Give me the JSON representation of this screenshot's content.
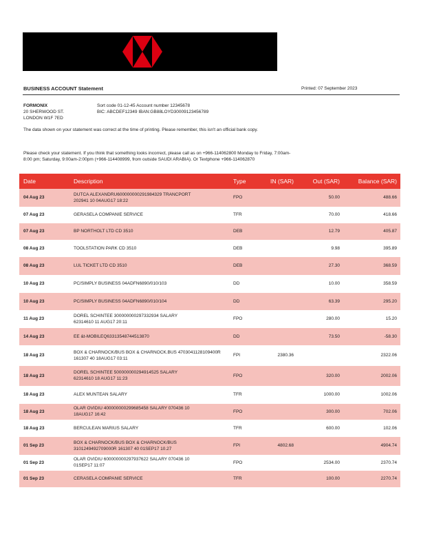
{
  "header": {
    "title": "BUSINESS ACCOUNT Statement",
    "printed": "Printed: 07 September 2023"
  },
  "customer": {
    "name": "FORMONIX",
    "address": [
      "20 SHERWOOD ST.",
      "LONDON W1F 7ED"
    ]
  },
  "account": {
    "line1": "Sort code 01-12-45  Account number 12345678",
    "line2": "BIC: ABCDEF12349  IBAN:GB88LOYD30009123456789"
  },
  "notes": {
    "accuracy": "The data shown on your statement was correct at the time of printing. Please remember, this isn't an official bank copy.",
    "check": [
      "Please check your statement. If you think that something looks incorrect, please call as on +966-114062800 Monday to Friday, 7:00am-",
      "8:00 pm; Saturday, 9:00am-2:00pm (+966-114408999, from outside SAUDI ARABIA). Or Textphone +966-114062870"
    ]
  },
  "table": {
    "columns": [
      "Date",
      "Description",
      "Type",
      "IN (SAR)",
      "Out (SAR)",
      "Balance (SAR)"
    ],
    "rows": [
      [
        "04 Aug 23",
        [
          "DUTCA ALEXANDRU600000000291984329 TRANCPORT",
          "202941 10 04AUG17 18:22"
        ],
        "FPO",
        "",
        "50.00",
        "488.66"
      ],
      [
        "07 Aug 23",
        [
          "GERASELA COMPANIE SERVICE"
        ],
        "TFR",
        "",
        "70.00",
        "418.66"
      ],
      [
        "07 Aug 23",
        [
          "BP NORTHOLT LTD CD 3510"
        ],
        "DEB",
        "",
        "12.79",
        "405.87"
      ],
      [
        "08 Aug 23",
        [
          "TOOLSTATION PARK CD 3510"
        ],
        "DEB",
        "",
        "9.98",
        "395.89"
      ],
      [
        "08 Aug 23",
        [
          "LUL TICKET LTD CD 3510"
        ],
        "DEB",
        "",
        "27.30",
        "368.59"
      ],
      [
        "10 Aug 23",
        [
          "PC/SIMPLY BUSINESS 04ADFN6890/010/103"
        ],
        "DD",
        "",
        "10.00",
        "358.59"
      ],
      [
        "10 Aug 23",
        [
          "PC/SIMPLY BUSINESS 04ADFN6890/010/104"
        ],
        "DD",
        "",
        "63.39",
        "295.20"
      ],
      [
        "11 Aug 23",
        [
          "DOREL SCHINTEE 300000000297332934 SALARY",
          "62314610 11 AUG17 20:11"
        ],
        "FPO",
        "",
        "280.00",
        "15.20"
      ],
      [
        "14 Aug 23",
        [
          "EE &t-MOBILEQ63313548744513870"
        ],
        "DD",
        "",
        "73.50",
        "-58.30"
      ],
      [
        "18 Aug 23",
        [
          "BOX & CHARNOCK/BUS BOX & CHARNOCK.BUS 4703041128109400R",
          "161307 40 18AUG17 03:11"
        ],
        "FPI",
        "2380.36",
        "",
        "2322.06"
      ],
      [
        "18 Aug 23",
        [
          "DOREL SCHINTEE 500000000294914525 SALARY",
          "62314610 18 AUG17 11:23"
        ],
        "FPO",
        "",
        "320.00",
        "2002.06"
      ],
      [
        "18 Aug 23",
        [
          "ALEX MUNTEAN SALARY"
        ],
        "TFR",
        "",
        "1000.00",
        "1002.06"
      ],
      [
        "18 Aug 23",
        [
          "OLAR OVIDIU 400000000299685458 SALARY 070436 10",
          "18AUG17 16:42"
        ],
        "FPO",
        "",
        "300.00",
        "702.06"
      ],
      [
        "18 Aug 23",
        [
          "BERCULEAN MARIUS SALARY"
        ],
        "TFR",
        "",
        "600.00",
        "102.06"
      ],
      [
        "01 Sep 23",
        [
          "BOX & CHARNOCK/BUS BOX & CHARNOCK/BUS",
          "3101249492709000R 161307 40 01SEP17 10.27"
        ],
        "FPI",
        "4802.68",
        "",
        "4904.74"
      ],
      [
        "01 Sep 23",
        [
          "OLAR OVIDIU 600000000297937622 SALARY 070436 10",
          "01SEP17 11:07"
        ],
        "FPO",
        "",
        "2534.00",
        "2370.74"
      ],
      [
        "01 Sep 23",
        [
          "CERASELA COMPANIE SERVICE"
        ],
        "TFR",
        "",
        "100.00",
        "2270.74"
      ]
    ]
  }
}
